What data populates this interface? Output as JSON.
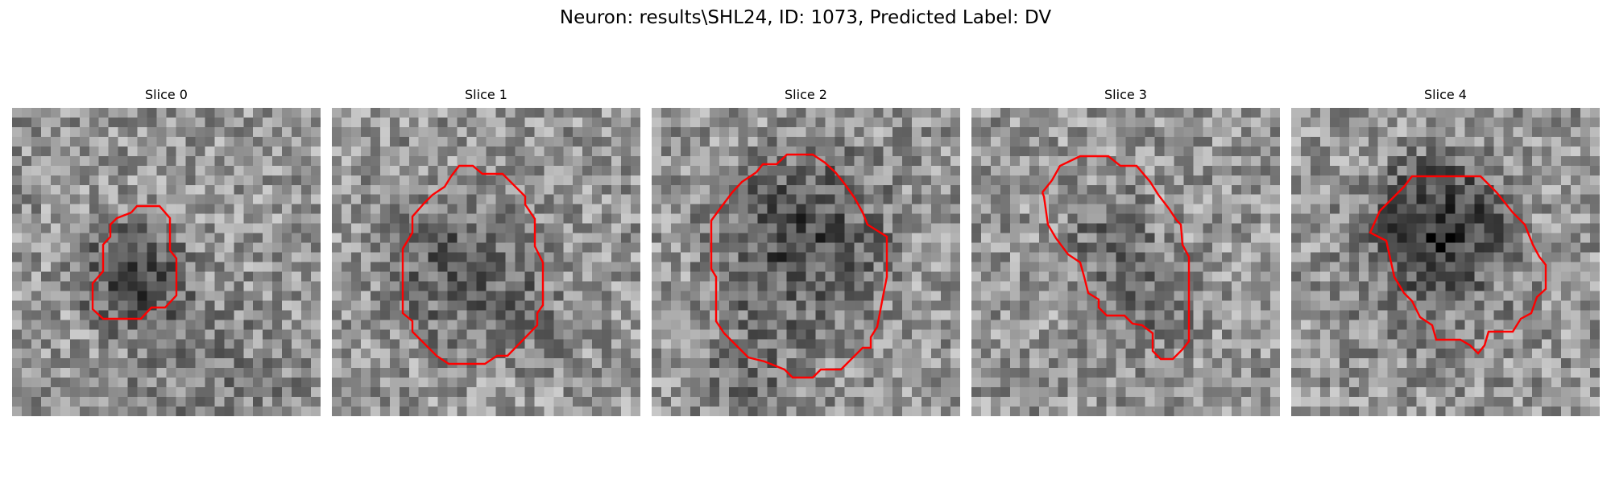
{
  "figure": {
    "title": "Neuron: results\\SHL24, ID: 1073, Predicted Label: DV",
    "outline_color": "#ff0000",
    "colormap": "gray"
  },
  "panels": [
    {
      "title": "Slice 0"
    },
    {
      "title": "Slice 1"
    },
    {
      "title": "Slice 2"
    },
    {
      "title": "Slice 3"
    },
    {
      "title": "Slice 4"
    }
  ]
}
